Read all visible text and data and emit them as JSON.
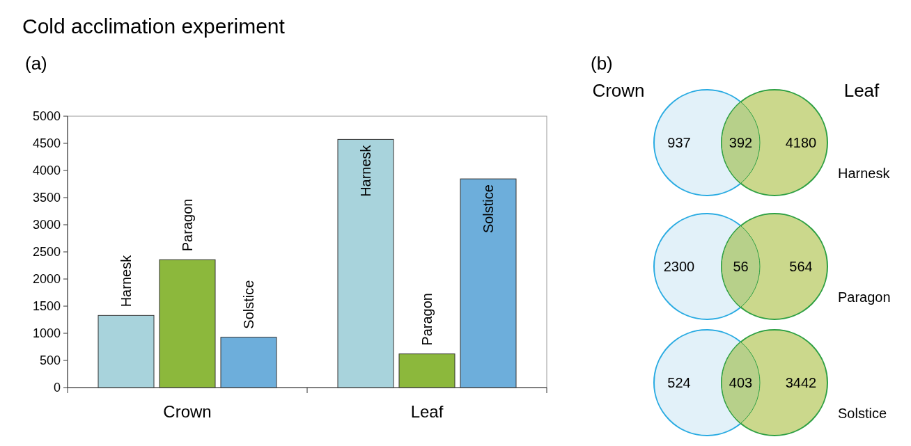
{
  "chart_data": [
    {
      "type": "bar",
      "title": "Cold acclimation experiment",
      "annotations": [
        "(a)"
      ],
      "categories": [
        "Crown",
        "Leaf"
      ],
      "series": [
        {
          "name": "Harnesk",
          "color": "#a8d3dc",
          "values": [
            1329,
            4572
          ]
        },
        {
          "name": "Paragon",
          "color": "#8cb83c",
          "values": [
            2356,
            620
          ]
        },
        {
          "name": "Solstice",
          "color": "#6daedb",
          "values": [
            927,
            3845
          ]
        }
      ],
      "ylim": [
        0,
        5000
      ],
      "yticks": [
        0,
        500,
        1000,
        1500,
        2000,
        2500,
        3000,
        3500,
        4000,
        4500,
        5000
      ]
    },
    {
      "type": "other",
      "annotations": [
        "(b)"
      ],
      "data_labels": true,
      "categories": [
        "Harnesk",
        "Paragon",
        "Solstice"
      ],
      "series": [
        {
          "name": "Crown",
          "color": "#e2f1f9",
          "values": [
            937,
            2300,
            524
          ]
        },
        {
          "name": "Leaf",
          "color": "#cbd88c",
          "values": [
            4180,
            564,
            3442
          ]
        },
        {
          "color": "#b7d08a",
          "values": [
            392,
            56,
            403
          ]
        }
      ]
    }
  ]
}
